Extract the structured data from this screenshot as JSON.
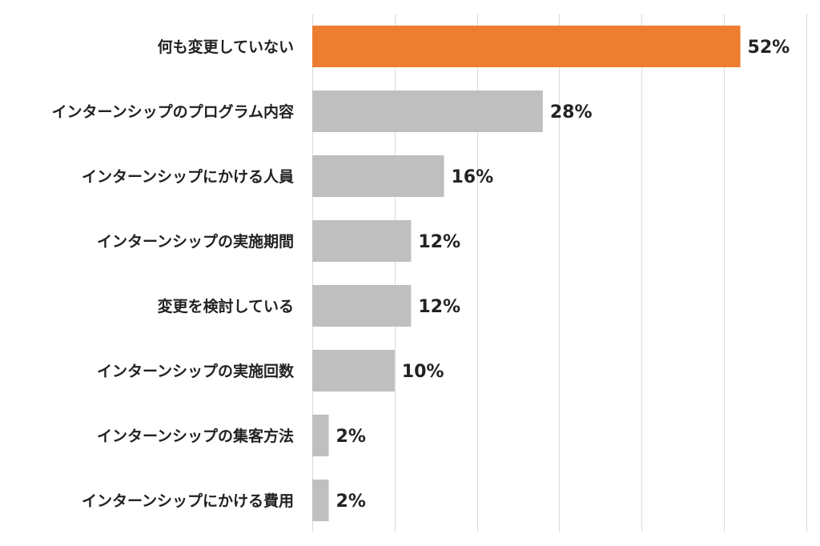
{
  "chart_data": {
    "type": "bar",
    "orientation": "horizontal",
    "categories": [
      "何も変更していない",
      "インターンシップのプログラム内容",
      "インターンシップにかける人員",
      "インターンシップの実施期間",
      "変更を検討している",
      "インターンシップの実施回数",
      "インターンシップの集客方法",
      "インターンシップにかける費用"
    ],
    "values": [
      52,
      28,
      16,
      12,
      12,
      10,
      2,
      2
    ],
    "value_labels": [
      "52%",
      "28%",
      "16%",
      "12%",
      "12%",
      "10%",
      "2%",
      "2%"
    ],
    "unit": "%",
    "xlim": [
      0,
      60
    ],
    "grid": true,
    "legend": "none",
    "colors": {
      "highlight": "#ed7d31",
      "default": "#bfbfbf",
      "grid": "#d9d9d9",
      "text": "#222222"
    },
    "highlight_index": 0
  }
}
